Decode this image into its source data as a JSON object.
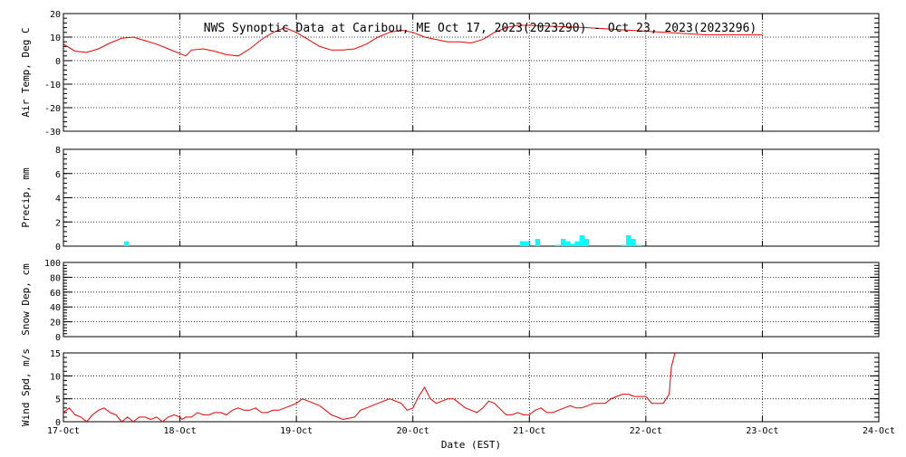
{
  "title": "NWS Synoptic Data at Caribou, ME   Oct 17, 2023(2023290) - Oct 23, 2023(2023296)",
  "colors": {
    "temp": "#ee0000",
    "precip": "#00ffff",
    "wind": "#ee0000",
    "frame": "#000000"
  },
  "chart_data": [
    {
      "type": "line",
      "ylabel": "Air Temp, Deg C",
      "ylim": [
        -30,
        20
      ],
      "yticks": [
        "20",
        "10",
        "0",
        "-10",
        "-20",
        "-30"
      ],
      "xlim": [
        0,
        7
      ],
      "grid": true,
      "x": [
        0,
        0.1,
        0.2,
        0.3,
        0.4,
        0.5,
        0.6,
        0.7,
        0.8,
        0.9,
        1.0,
        1.05,
        1.1,
        1.2,
        1.3,
        1.4,
        1.5,
        1.6,
        1.7,
        1.8,
        1.9,
        2.0,
        2.1,
        2.2,
        2.3,
        2.4,
        2.5,
        2.6,
        2.7,
        2.8,
        2.9,
        3.0,
        3.1,
        3.2,
        3.3,
        3.4,
        3.5,
        3.6,
        3.7,
        3.8,
        3.9,
        4.0,
        4.5,
        5.0,
        5.5,
        6.0
      ],
      "y": [
        7,
        4,
        3.5,
        5,
        7.5,
        9.5,
        10,
        8.5,
        7,
        5,
        3,
        2,
        4.5,
        5,
        4,
        2.5,
        2,
        5,
        9,
        12,
        14,
        12,
        9,
        6,
        4.5,
        4.5,
        5,
        7,
        10,
        12,
        13,
        12,
        10,
        9,
        8,
        8,
        7.5,
        9,
        12,
        14,
        15,
        15,
        14,
        12.5,
        11,
        11
      ]
    },
    {
      "type": "bar",
      "ylabel": "Precip, mm",
      "ylim": [
        0,
        8
      ],
      "yticks": [
        "8",
        "6",
        "4",
        "2",
        "0"
      ],
      "xlim": [
        0,
        7
      ],
      "grid": true,
      "bar_width": 0.041666,
      "x": [
        0.52,
        3.92,
        3.96,
        4.05,
        4.22,
        4.27,
        4.31,
        4.35,
        4.39,
        4.43,
        4.47,
        4.79,
        4.83,
        4.87,
        4.92
      ],
      "y": [
        0.4,
        0.4,
        0.4,
        0.6,
        0.1,
        0.6,
        0.4,
        0.2,
        0.4,
        0.9,
        0.6,
        0.1,
        0.9,
        0.6,
        0.1
      ]
    },
    {
      "type": "line",
      "ylabel": "Snow Dep, cm",
      "ylim": [
        0,
        100
      ],
      "yticks": [
        "100",
        "80",
        "60",
        "40",
        "20",
        "0"
      ],
      "xlim": [
        0,
        7
      ],
      "grid": true,
      "x": [],
      "y": []
    },
    {
      "type": "line",
      "ylabel": "Wind Spd, m/s",
      "ylim": [
        0,
        15
      ],
      "yticks": [
        "15",
        "10",
        "5",
        "0"
      ],
      "xlim": [
        0,
        7
      ],
      "xlabel": "Date (EST)",
      "xticks": [
        "17-Oct",
        "18-Oct",
        "19-Oct",
        "20-Oct",
        "21-Oct",
        "22-Oct",
        "23-Oct",
        "24-Oct"
      ],
      "grid": true,
      "x": [
        0,
        0.05,
        0.1,
        0.15,
        0.2,
        0.25,
        0.3,
        0.35,
        0.4,
        0.45,
        0.5,
        0.55,
        0.6,
        0.65,
        0.7,
        0.75,
        0.8,
        0.85,
        0.9,
        0.95,
        1.0,
        1.02,
        1.05,
        1.1,
        1.15,
        1.2,
        1.25,
        1.3,
        1.35,
        1.4,
        1.45,
        1.5,
        1.55,
        1.6,
        1.65,
        1.7,
        1.75,
        1.8,
        1.85,
        1.9,
        1.95,
        2.0,
        2.05,
        2.1,
        2.15,
        2.2,
        2.3,
        2.4,
        2.5,
        2.55,
        2.6,
        2.7,
        2.8,
        2.9,
        2.95,
        3.0,
        3.05,
        3.1,
        3.15,
        3.2,
        3.25,
        3.3,
        3.35,
        3.4,
        3.45,
        3.5,
        3.55,
        3.6,
        3.65,
        3.7,
        3.8,
        3.85,
        3.9,
        3.95,
        4.0,
        4.05,
        4.1,
        4.15,
        4.2,
        4.25,
        4.3,
        4.35,
        4.4,
        4.45,
        4.5,
        4.55,
        4.6,
        4.65,
        4.7,
        4.75,
        4.8,
        4.85,
        4.9,
        4.95,
        5.0,
        5.05,
        5.1,
        5.15,
        5.2,
        5.22,
        5.25
      ],
      "y": [
        2,
        3,
        1.5,
        1,
        0,
        1.5,
        2.5,
        3,
        2,
        1.5,
        0,
        1,
        0,
        1,
        1,
        0.5,
        1,
        0,
        1,
        1.5,
        1,
        0.5,
        1,
        1,
        2,
        1.5,
        1.5,
        2,
        2,
        1.5,
        2.5,
        3,
        2.5,
        2.5,
        3,
        2,
        2,
        2.5,
        2.5,
        3,
        3.5,
        4,
        5,
        4.5,
        4,
        3.5,
        1.5,
        0.5,
        1,
        2.5,
        3,
        4,
        5,
        4,
        2.5,
        3,
        5.5,
        7.5,
        5,
        4,
        4.5,
        5,
        5,
        4,
        3,
        2.5,
        2,
        3,
        4.5,
        4,
        1.5,
        1.5,
        2,
        1.5,
        1.5,
        2.5,
        3,
        2,
        2,
        2.5,
        3,
        3.5,
        3,
        3,
        3.5,
        4,
        4,
        4,
        5,
        5.5,
        6,
        6,
        5.5,
        5.5,
        5.5,
        4,
        4,
        4,
        6,
        12,
        15.5
      ]
    }
  ]
}
